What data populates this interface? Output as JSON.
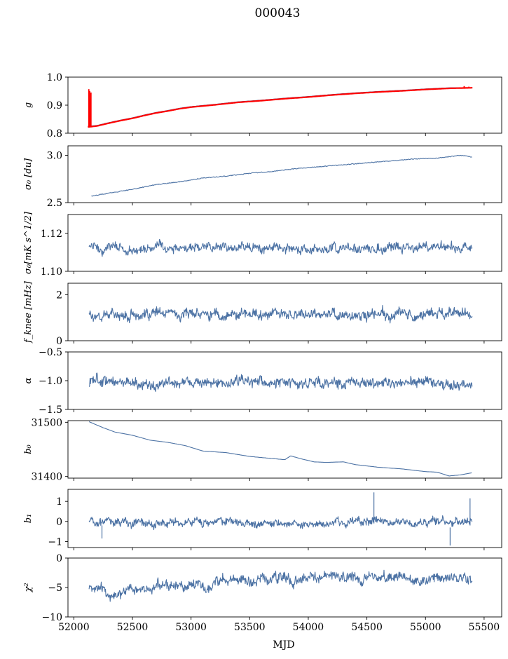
{
  "figure": {
    "title": "000043",
    "xlabel": "MJD"
  },
  "chart_data": [
    {
      "type": "line",
      "key": "g",
      "ylabel": "g",
      "xlim": [
        51950,
        55650
      ],
      "ylim": [
        0.8,
        1.0
      ],
      "yticks": [
        0.8,
        0.9,
        1.0
      ],
      "ytick_labels": [
        "0.8",
        "0.9",
        "1.0"
      ],
      "series": [
        {
          "color": "#4c72a4",
          "style": "line",
          "x": [
            52120,
            52200,
            52300,
            52400,
            52500,
            52600,
            52700,
            52800,
            52900,
            53000,
            53200,
            53400,
            53600,
            53800,
            54000,
            54200,
            54400,
            54600,
            54800,
            55000,
            55200,
            55400
          ],
          "y": [
            0.825,
            0.828,
            0.838,
            0.847,
            0.855,
            0.865,
            0.874,
            0.881,
            0.889,
            0.895,
            0.903,
            0.912,
            0.918,
            0.925,
            0.931,
            0.938,
            0.944,
            0.949,
            0.953,
            0.958,
            0.962,
            0.962
          ]
        },
        {
          "color": "#ff0000",
          "style": "line",
          "x": [
            52120,
            52200,
            52300,
            52400,
            52500,
            52600,
            52700,
            52800,
            52900,
            53000,
            53200,
            53400,
            53600,
            53800,
            54000,
            54200,
            54400,
            54600,
            54800,
            55000,
            55200,
            55400
          ],
          "y": [
            0.822,
            0.826,
            0.836,
            0.845,
            0.853,
            0.863,
            0.872,
            0.879,
            0.887,
            0.893,
            0.901,
            0.91,
            0.916,
            0.923,
            0.929,
            0.936,
            0.942,
            0.947,
            0.951,
            0.956,
            0.96,
            0.962
          ]
        },
        {
          "color": "#ff0000",
          "style": "spikes",
          "points": [
            [
              52128,
              0.822,
              0.957
            ],
            [
              52135,
              0.822,
              0.95
            ],
            [
              52140,
              0.823,
              0.92
            ],
            [
              52146,
              0.823,
              0.945
            ],
            [
              55330,
              0.962,
              0.968
            ],
            [
              55370,
              0.962,
              0.966
            ]
          ]
        }
      ]
    },
    {
      "type": "line",
      "key": "sigma0",
      "ylabel": "σ₀ [du]",
      "xlim": [
        51950,
        55650
      ],
      "ylim": [
        2.5,
        3.1
      ],
      "yticks": [
        2.5,
        3.0
      ],
      "ytick_labels": [
        "2.5",
        "3.0"
      ],
      "series": [
        {
          "color": "#4c72a4",
          "style": "line",
          "noise": 0.004,
          "x": [
            52150,
            52300,
            52500,
            52700,
            52900,
            53100,
            53300,
            53500,
            53700,
            53900,
            54100,
            54300,
            54500,
            54700,
            54900,
            55100,
            55300,
            55400
          ],
          "y": [
            2.57,
            2.6,
            2.64,
            2.69,
            2.72,
            2.76,
            2.78,
            2.81,
            2.83,
            2.86,
            2.88,
            2.9,
            2.92,
            2.94,
            2.96,
            2.97,
            3.0,
            2.98
          ]
        }
      ]
    },
    {
      "type": "line",
      "key": "sigma0_nep",
      "ylabel": "σ₀[mK s^1/2]",
      "xlim": [
        51950,
        55650
      ],
      "ylim": [
        1.1,
        1.13
      ],
      "yticks": [
        1.1,
        1.12
      ],
      "ytick_labels": [
        "1.10",
        "1.12"
      ],
      "series": [
        {
          "color": "#4c72a4",
          "style": "noise",
          "x0": 52130,
          "x1": 55400,
          "base": 1.112,
          "amp": 0.0022,
          "seed": 3
        }
      ]
    },
    {
      "type": "line",
      "key": "fknee",
      "ylabel": "f_knee [mHz]",
      "xlim": [
        51950,
        55650
      ],
      "ylim": [
        0,
        2.5
      ],
      "yticks": [
        0,
        2
      ],
      "ytick_labels": [
        "0",
        "2"
      ],
      "series": [
        {
          "color": "#4c72a4",
          "style": "noise",
          "x0": 52130,
          "x1": 55400,
          "base": 1.15,
          "amp": 0.2,
          "seed": 7
        }
      ]
    },
    {
      "type": "line",
      "key": "alpha",
      "ylabel": "α",
      "xlim": [
        51950,
        55650
      ],
      "ylim": [
        -1.5,
        -0.5
      ],
      "yticks": [
        -1.5,
        -1.0,
        -0.5
      ],
      "ytick_labels": [
        "−1.5",
        "−1.0",
        "−0.5"
      ],
      "series": [
        {
          "color": "#4c72a4",
          "style": "noise",
          "x0": 52130,
          "x1": 55400,
          "base": -1.04,
          "amp": 0.08,
          "seed": 11
        }
      ]
    },
    {
      "type": "line",
      "key": "b0",
      "ylabel": "b₀",
      "xlim": [
        51950,
        55650
      ],
      "ylim": [
        31397,
        31503
      ],
      "yticks": [
        31400,
        31500
      ],
      "ytick_labels": [
        "31400",
        "31500"
      ],
      "series": [
        {
          "color": "#4c72a4",
          "style": "line",
          "x": [
            52130,
            52250,
            52350,
            52500,
            52650,
            52800,
            52950,
            53100,
            53300,
            53500,
            53700,
            53800,
            53850,
            53950,
            54050,
            54150,
            54300,
            54400,
            54600,
            54800,
            55000,
            55100,
            55200,
            55300,
            55400
          ],
          "y": [
            31501,
            31490,
            31482,
            31476,
            31467,
            31463,
            31457,
            31447,
            31444,
            31437,
            31433,
            31431,
            31438,
            31432,
            31427,
            31426,
            31427,
            31422,
            31417,
            31414,
            31409,
            31408,
            31401,
            31403,
            31407
          ]
        }
      ]
    },
    {
      "type": "line",
      "key": "b1",
      "ylabel": "b₁",
      "xlim": [
        51950,
        55650
      ],
      "ylim": [
        -1.3,
        1.6
      ],
      "yticks": [
        -1,
        0,
        1
      ],
      "ytick_labels": [
        "−1",
        "0",
        "1"
      ],
      "series": [
        {
          "color": "#4c72a4",
          "style": "noise",
          "x0": 52130,
          "x1": 55400,
          "base": -0.05,
          "amp": 0.18,
          "seed": 19
        },
        {
          "color": "#4c72a4",
          "style": "spikes",
          "points": [
            [
              54560,
              -0.1,
              1.45
            ],
            [
              55380,
              -0.2,
              1.15
            ],
            [
              55210,
              -0.3,
              -1.2
            ],
            [
              52240,
              -0.2,
              -0.85
            ]
          ]
        }
      ]
    },
    {
      "type": "line",
      "key": "chi2",
      "ylabel": "χ²",
      "xlim": [
        51950,
        55650
      ],
      "ylim": [
        -10,
        0
      ],
      "yticks": [
        -10,
        -5,
        0
      ],
      "ytick_labels": [
        "−10",
        "−5",
        "0"
      ],
      "xticks": [
        52000,
        52500,
        53000,
        53500,
        54000,
        54500,
        55000,
        55500
      ],
      "xtick_labels": [
        "52000",
        "52500",
        "53000",
        "53500",
        "54000",
        "54500",
        "55000",
        "55500"
      ],
      "series": [
        {
          "color": "#4c72a4",
          "style": "trendnoise",
          "x0": 52130,
          "x1": 55400,
          "trend_x": [
            52130,
            52300,
            52500,
            52800,
            53200,
            53600,
            54000,
            54500,
            55000,
            55400
          ],
          "trend_y": [
            -4.8,
            -6.3,
            -5.5,
            -4.7,
            -4.2,
            -3.8,
            -3.4,
            -3.3,
            -3.3,
            -3.6
          ],
          "amp": 0.8,
          "seed": 23
        }
      ]
    }
  ]
}
